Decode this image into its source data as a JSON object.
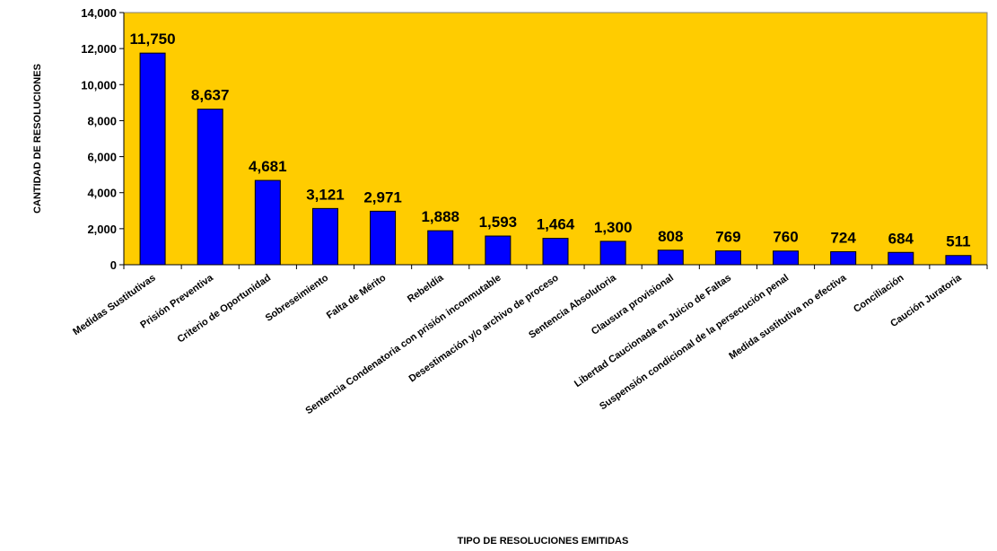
{
  "chart_data": {
    "type": "bar",
    "title": "",
    "xlabel": "TIPO DE RESOLUCIONES EMITIDAS",
    "ylabel": "CANTIDAD DE RESOLUCIONES",
    "ylim": [
      0,
      14000
    ],
    "ytick_labels": [
      "0",
      "2,000",
      "4,000",
      "6,000",
      "8,000",
      "10,000",
      "12,000",
      "14,000"
    ],
    "categories": [
      "Medidas Sustitutivas",
      "Prisión Preventiva",
      "Criterio de Oportunidad",
      "Sobreseimiento",
      "Falta de Mérito",
      "Rebeldía",
      "Sentencia Condenatoria con prisión inconmutable",
      "Desestimación y/o archivo de proceso",
      "Sentencia Absolutoria",
      "Clausura provisional",
      "Libertad Caucionada en Juicio de Faltas",
      "Suspensión condicional de la persecución penal",
      "Medida sustitutiva no efectiva",
      "Conciliación",
      "Caución Juratoria"
    ],
    "values": [
      11750,
      8637,
      4681,
      3121,
      2971,
      1888,
      1593,
      1464,
      1300,
      808,
      769,
      760,
      724,
      684,
      511
    ],
    "value_labels": [
      "11,750",
      "8,637",
      "4,681",
      "3,121",
      "2,971",
      "1,888",
      "1,593",
      "1,464",
      "1,300",
      "808",
      "769",
      "760",
      "724",
      "684",
      "511"
    ],
    "colors": {
      "plot_background": "#FFCC00",
      "bar_fill": "#0000FF",
      "bar_stroke": "#000000"
    },
    "grid": false,
    "legend": "none"
  }
}
